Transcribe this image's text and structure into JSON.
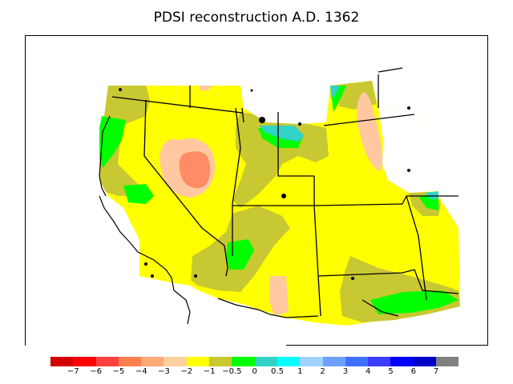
{
  "title": "PDSI reconstruction A.D. 1362",
  "legend": {
    "colors": [
      "#d20000",
      "#ff0000",
      "#ff4040",
      "#ff7f50",
      "#ffa878",
      "#ffd0a0",
      "#ffff00",
      "#c8c832",
      "#00ff00",
      "#32d2c8",
      "#00ffff",
      "#a0d2ff",
      "#6ea0ff",
      "#4070ff",
      "#3c3cff",
      "#0000ff",
      "#0000c8",
      "#808080"
    ],
    "ticks": [
      "−7",
      "−6",
      "−5",
      "−4",
      "−3",
      "−2",
      "−1",
      "−0.5",
      "0",
      "0.5",
      "1",
      "2",
      "3",
      "4",
      "5",
      "6",
      "7"
    ]
  },
  "map_colors": {
    "base": "#ffff00",
    "olive": "#c8c832",
    "light_orange": "#ffc8a0",
    "orange": "#ff8c64",
    "green": "#00ff00",
    "teal": "#32d2c8"
  }
}
